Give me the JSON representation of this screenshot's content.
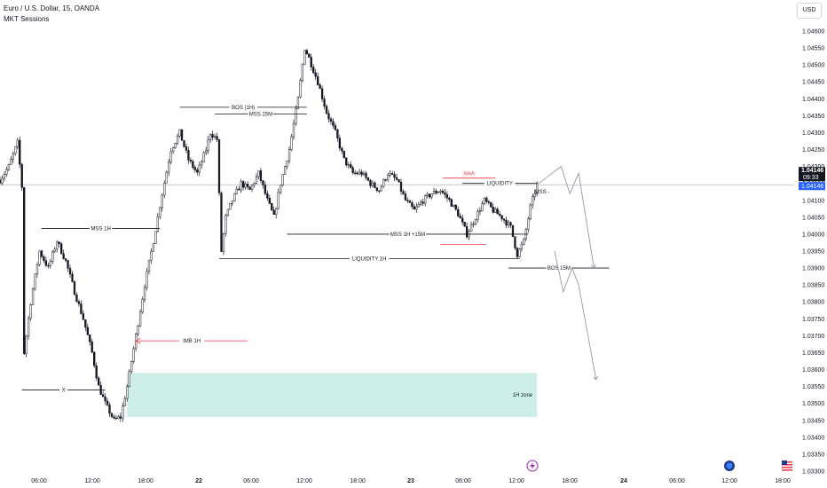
{
  "header": {
    "title": "Euro / U.S. Dollar, 15, OANDA",
    "indicator": "MKT Sessions"
  },
  "currency_button": "USD",
  "colors": {
    "up": "#131722",
    "down": "#131722",
    "zone": "#cdeee6",
    "accent": "#f23645",
    "price_tag": "#131722",
    "countdown_tag": "#2962ff"
  },
  "icons": {
    "lightning": "lightning-icon",
    "earth": "earth-icon",
    "us_flag": "us-flag-icon"
  },
  "chart_data": {
    "type": "candlestick",
    "symbol": "EUR/USD",
    "timeframe": "15",
    "y_ticks": [
      "1.04600",
      "1.04550",
      "1.04500",
      "1.04450",
      "1.04400",
      "1.04350",
      "1.04300",
      "1.04250",
      "1.04200",
      "1.04150",
      "1.04100",
      "1.04050",
      "1.04000",
      "1.03950",
      "1.03900",
      "1.03850",
      "1.03800",
      "1.03750",
      "1.03700",
      "1.03650",
      "1.03600",
      "1.03550",
      "1.03500",
      "1.03450",
      "1.03400",
      "1.03350",
      "1.03300"
    ],
    "x_ticks": [
      "06:00",
      "12:00",
      "18:00",
      "22",
      "06:00",
      "12:00",
      "18:00",
      "23",
      "06:00",
      "12:00",
      "18:00",
      "24",
      "06:00",
      "12:00",
      "18:00"
    ],
    "ylim": [
      1.0329,
      1.0465
    ],
    "current_price": "1.04146",
    "countdown": "09:33",
    "last_price_box": "1.04146",
    "path_points": [
      [
        0,
        1.0416
      ],
      [
        4,
        1.042
      ],
      [
        8,
        1.0427
      ],
      [
        10,
        1.0414
      ],
      [
        11,
        1.0365
      ],
      [
        14,
        1.038
      ],
      [
        18,
        1.0395
      ],
      [
        22,
        1.039
      ],
      [
        26,
        1.0398
      ],
      [
        30,
        1.0392
      ],
      [
        34,
        1.0383
      ],
      [
        38,
        1.0375
      ],
      [
        42,
        1.0365
      ],
      [
        45,
        1.0355
      ],
      [
        48,
        1.035
      ],
      [
        52,
        1.0345
      ],
      [
        55,
        1.0346
      ],
      [
        58,
        1.0355
      ],
      [
        62,
        1.037
      ],
      [
        66,
        1.0385
      ],
      [
        70,
        1.0398
      ],
      [
        74,
        1.0412
      ],
      [
        78,
        1.0425
      ],
      [
        82,
        1.043
      ],
      [
        86,
        1.0422
      ],
      [
        90,
        1.0418
      ],
      [
        94,
        1.0425
      ],
      [
        96,
        1.043
      ],
      [
        99,
        1.0428
      ],
      [
        101,
        1.0395
      ],
      [
        103,
        1.0405
      ],
      [
        106,
        1.041
      ],
      [
        110,
        1.0415
      ],
      [
        114,
        1.0413
      ],
      [
        118,
        1.0418
      ],
      [
        122,
        1.041
      ],
      [
        125,
        1.0405
      ],
      [
        128,
        1.0415
      ],
      [
        132,
        1.0425
      ],
      [
        136,
        1.044
      ],
      [
        139,
        1.0455
      ],
      [
        141,
        1.0452
      ],
      [
        145,
        1.0445
      ],
      [
        149,
        1.0436
      ],
      [
        153,
        1.043
      ],
      [
        157,
        1.0422
      ],
      [
        161,
        1.0418
      ],
      [
        165,
        1.0418
      ],
      [
        169,
        1.0415
      ],
      [
        173,
        1.0413
      ],
      [
        177,
        1.0418
      ],
      [
        181,
        1.0416
      ],
      [
        185,
        1.041
      ],
      [
        189,
        1.0407
      ],
      [
        193,
        1.041
      ],
      [
        197,
        1.0412
      ],
      [
        201,
        1.0413
      ],
      [
        205,
        1.041
      ],
      [
        209,
        1.0406
      ],
      [
        213,
        1.04
      ],
      [
        217,
        1.0405
      ],
      [
        221,
        1.041
      ],
      [
        225,
        1.0407
      ],
      [
        229,
        1.0405
      ],
      [
        233,
        1.0402
      ],
      [
        236,
        1.0394
      ],
      [
        239,
        1.0398
      ],
      [
        242,
        1.0408
      ],
      [
        245,
        1.04146
      ]
    ],
    "zones": [
      {
        "label": "1H zone",
        "t0": 58,
        "t1": 245,
        "top": 1.0359,
        "bottom": 1.0346
      }
    ],
    "annotations": [
      {
        "label": "BOS (1H)",
        "t0": 82,
        "t1": 140,
        "price": 1.04375,
        "style": "solid"
      },
      {
        "label": "MSS 15M",
        "t0": 98,
        "t1": 140,
        "price": 1.04355,
        "style": "solid"
      },
      {
        "label": "MSS 1H",
        "t0": 19,
        "t1": 73,
        "price": 1.04017,
        "style": "solid"
      },
      {
        "label": "MSS 1H +15M",
        "t0": 131,
        "t1": 241,
        "price": 1.04,
        "style": "solid"
      },
      {
        "label": "LIQUIDITY 1H",
        "t0": 100,
        "t1": 237,
        "price": 1.03928,
        "style": "solid"
      },
      {
        "label": "LIQUIDITY",
        "t0": 211,
        "t1": 245,
        "price": 1.0415,
        "style": "solid"
      },
      {
        "label": "BOS 15M",
        "t0": 232,
        "t1": 278,
        "price": 1.039,
        "style": "solid"
      },
      {
        "label": "X",
        "t0": 10,
        "t1": 48,
        "price": 1.0354,
        "style": "solid"
      }
    ],
    "red_annotations": [
      {
        "label": "IMB 1H",
        "t0": 62,
        "t1": 113,
        "price": 1.03685
      },
      {
        "label": "AHA",
        "t0": 202,
        "t1": 226,
        "price": 1.0415
      }
    ],
    "sell_marker_label": "MSS -"
  }
}
